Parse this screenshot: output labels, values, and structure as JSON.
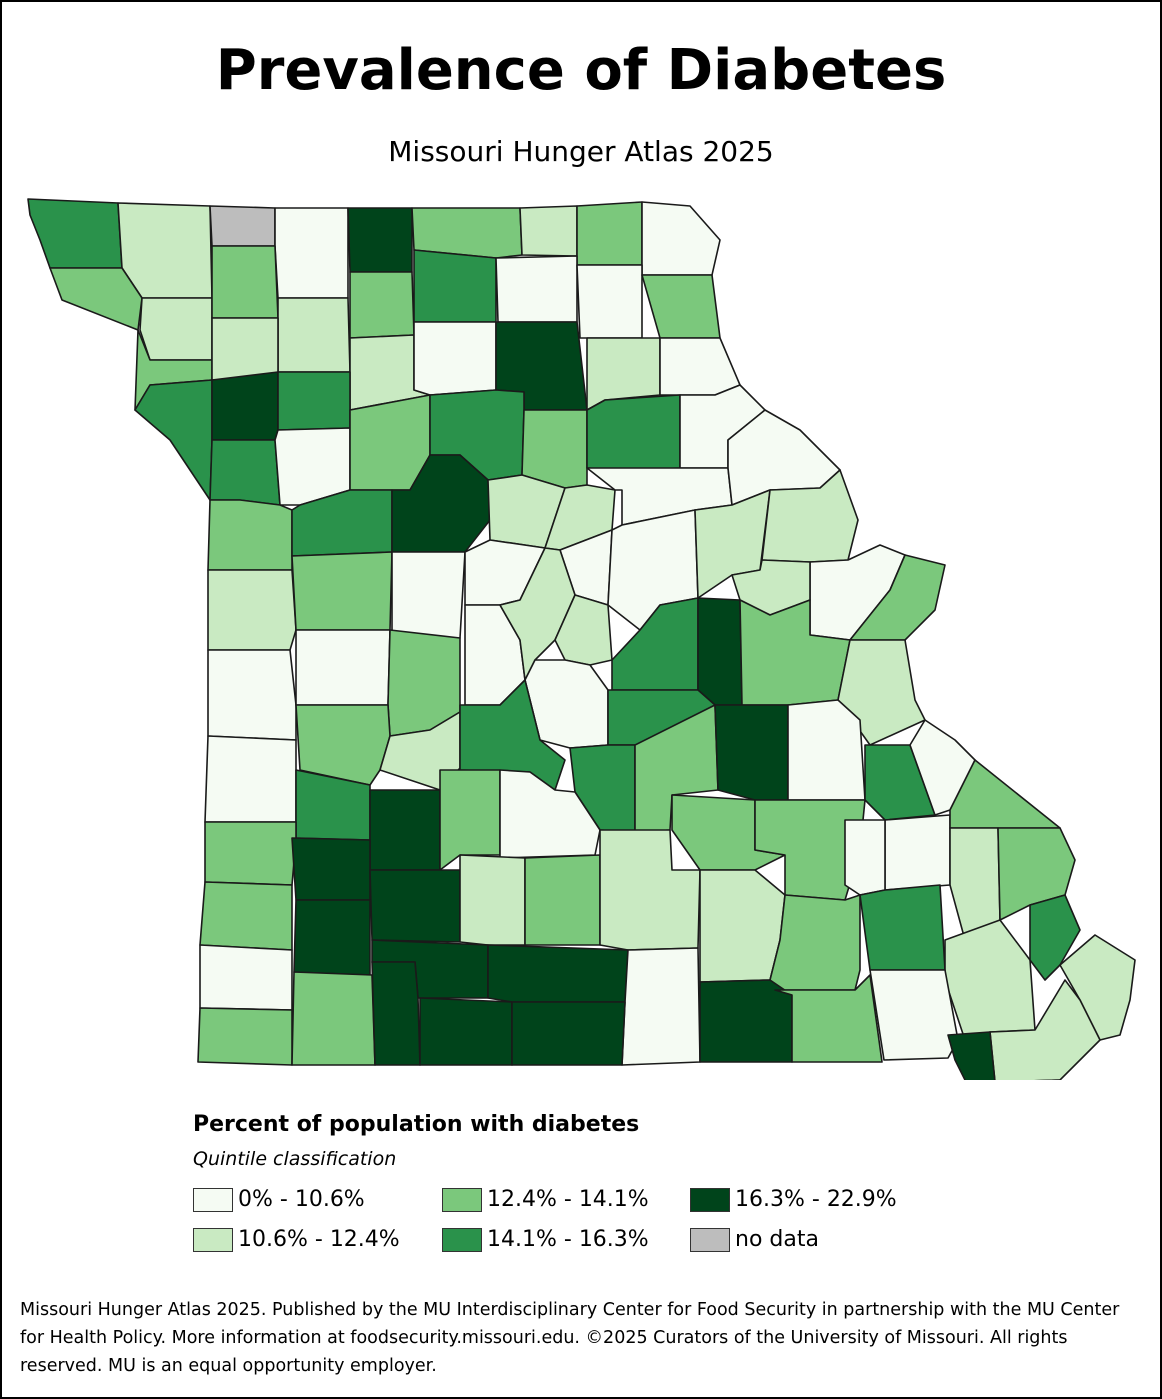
{
  "title": "Prevalence of Diabetes",
  "subtitle": "Missouri Hunger Atlas 2025",
  "legend": {
    "title": "Percent of population with diabetes",
    "subtitle": "Quintile classification",
    "items": [
      {
        "label": "0% - 10.6%",
        "color": "#f5fbf3"
      },
      {
        "label": "10.6% - 12.4%",
        "color": "#c9eac2"
      },
      {
        "label": "12.4% - 14.1%",
        "color": "#7bc87c"
      },
      {
        "label": "14.1% - 16.3%",
        "color": "#2a924b"
      },
      {
        "label": "16.3% - 22.9%",
        "color": "#00441b"
      },
      {
        "label": "no data",
        "color": "#bdbdbd"
      }
    ]
  },
  "footer": "Missouri Hunger Atlas 2025. Published by the MU Interdisciplinary Center for Food Security in partnership with the MU Center for Health Policy. More information at foodsecurity.missouri.edu. ©2025 Curators of the University of Missouri. All rights reserved. MU is an equal opportunity employer.",
  "counties": [
    {
      "q": 3
    },
    {
      "q": 1
    },
    {
      "q": 5
    },
    {
      "q": 0
    },
    {
      "q": 4
    },
    {
      "q": 2
    },
    {
      "q": 1
    },
    {
      "q": 2
    },
    {
      "q": 0
    },
    {
      "q": 2
    },
    {
      "q": 1
    },
    {
      "q": 2
    },
    {
      "q": 1
    },
    {
      "q": 2
    },
    {
      "q": 3
    },
    {
      "q": 0
    },
    {
      "q": 0
    },
    {
      "q": 2
    },
    {
      "q": 2
    },
    {
      "q": 1
    },
    {
      "q": 1
    },
    {
      "q": 0
    },
    {
      "q": 4
    },
    {
      "q": 1
    },
    {
      "q": 0
    },
    {
      "q": 3
    },
    {
      "q": 4
    },
    {
      "q": 3
    },
    {
      "q": 3
    },
    {
      "q": 0
    },
    {
      "q": 2
    },
    {
      "q": 3
    },
    {
      "q": 2
    },
    {
      "q": 3
    },
    {
      "q": 0
    },
    {
      "q": 2
    },
    {
      "q": 3
    },
    {
      "q": 4
    },
    {
      "q": 1
    },
    {
      "q": 1
    },
    {
      "q": 0
    },
    {
      "q": 0
    },
    {
      "q": 1
    },
    {
      "q": 2
    },
    {
      "q": 0
    },
    {
      "q": 0
    },
    {
      "q": 0
    },
    {
      "q": 0
    },
    {
      "q": 1
    },
    {
      "q": 1
    },
    {
      "q": 0
    },
    {
      "q": 2
    },
    {
      "q": 1
    },
    {
      "q": 0
    },
    {
      "q": 0
    },
    {
      "q": 2
    },
    {
      "q": 0
    },
    {
      "q": 1
    },
    {
      "q": 1
    },
    {
      "q": 3
    },
    {
      "q": 4
    },
    {
      "q": 2
    },
    {
      "q": 1
    },
    {
      "q": 0
    },
    {
      "q": 0
    },
    {
      "q": 2
    },
    {
      "q": 1
    },
    {
      "q": 3
    },
    {
      "q": 3
    },
    {
      "q": 3
    },
    {
      "q": 2
    },
    {
      "q": 4
    },
    {
      "q": 0
    },
    {
      "q": 3
    },
    {
      "q": 0
    },
    {
      "q": 3
    },
    {
      "q": 4
    },
    {
      "q": 2
    },
    {
      "q": 0
    },
    {
      "q": 2
    },
    {
      "q": 2
    },
    {
      "q": 0
    },
    {
      "q": 2
    },
    {
      "q": 1
    },
    {
      "q": 2
    },
    {
      "q": 0
    },
    {
      "q": 2
    },
    {
      "q": 4
    },
    {
      "q": 4
    },
    {
      "q": 1
    },
    {
      "q": 2
    },
    {
      "q": 1
    },
    {
      "q": 1
    },
    {
      "q": 2
    },
    {
      "q": 3
    },
    {
      "q": 2
    },
    {
      "q": 4
    },
    {
      "q": 4
    },
    {
      "q": 4
    },
    {
      "q": 0
    },
    {
      "q": 1
    },
    {
      "q": 3
    },
    {
      "q": 1
    },
    {
      "q": 0
    },
    {
      "q": 2
    },
    {
      "q": 2
    },
    {
      "q": 4
    },
    {
      "q": 4
    },
    {
      "q": 4
    },
    {
      "q": 4
    },
    {
      "q": 2
    },
    {
      "q": 0
    },
    {
      "q": 1
    },
    {
      "q": 2
    },
    {
      "q": 4
    },
    {
      "q": 4
    },
    {
      "q": 3
    },
    {
      "q": 4
    },
    {
      "q": 4
    },
    {
      "q": 4
    },
    {
      "q": 4
    },
    {
      "q": 3
    },
    {
      "q": 3
    }
  ]
}
